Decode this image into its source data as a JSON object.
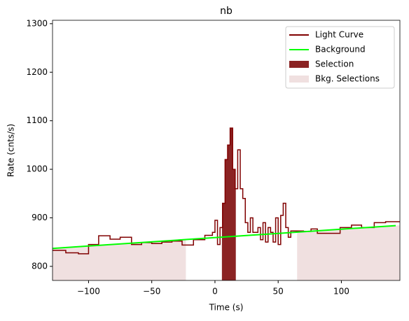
{
  "chart_data": {
    "type": "line",
    "title": "nb",
    "xlabel": "Time (s)",
    "ylabel": "Rate (cnts/s)",
    "xlim": [
      -128.5,
      146.3
    ],
    "ylim": [
      771,
      1307
    ],
    "xticks": [
      {
        "value": -100,
        "label": "−100"
      },
      {
        "value": -50,
        "label": "−50"
      },
      0,
      50,
      100
    ],
    "yticks": [
      800,
      900,
      1000,
      1100,
      1200,
      1300
    ],
    "legend": "upper right",
    "series": [
      {
        "name": "Light Curve",
        "color": "#800000",
        "step": true,
        "x": [
          -128.5,
          -118,
          -108,
          -100,
          -92,
          -83,
          -75,
          -66,
          -58,
          -50,
          -42,
          -34,
          -26,
          -17,
          -8,
          -2,
          0,
          2,
          4,
          6,
          8,
          10,
          12,
          14,
          16,
          18,
          20,
          22,
          24,
          26,
          28,
          30,
          32,
          34,
          36,
          38,
          40,
          42,
          44,
          46,
          48,
          50,
          52,
          54,
          56,
          58,
          60,
          64,
          70,
          76,
          81,
          90,
          99,
          108,
          116,
          126,
          135
        ],
        "values": [
          833,
          828,
          826,
          845,
          863,
          856,
          860,
          845,
          849,
          847,
          850,
          852,
          844,
          855,
          864,
          870,
          895,
          845,
          880,
          930,
          1020,
          1050,
          1085,
          1000,
          960,
          1040,
          960,
          940,
          890,
          870,
          900,
          870,
          870,
          880,
          855,
          890,
          850,
          880,
          870,
          850,
          900,
          845,
          905,
          930,
          880,
          860,
          873,
          873,
          872,
          877,
          868,
          868,
          880,
          885,
          880,
          890,
          892
        ]
      },
      {
        "name": "Background",
        "color": "#00ff00",
        "x": [
          -128.5,
          143
        ],
        "values": [
          837,
          884
        ]
      }
    ],
    "selection": {
      "name": "Selection",
      "color": "#8b2323",
      "range": [
        5.5,
        16.5
      ]
    },
    "bkg_selections": {
      "name": "Bkg. Selections",
      "color": "#f0e0e0",
      "ranges": [
        [
          -128.5,
          -23
        ],
        [
          65,
          146.3
        ]
      ]
    }
  }
}
